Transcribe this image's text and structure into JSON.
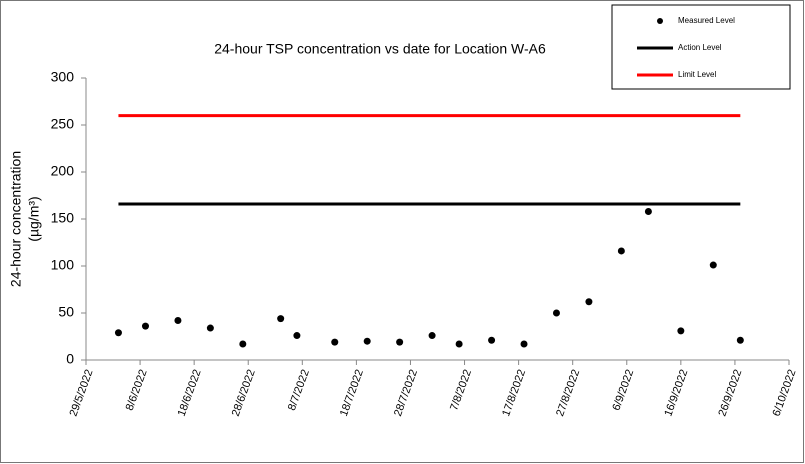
{
  "chart_data": {
    "type": "scatter",
    "title": "24-hour TSP concentration vs date for Location W-A6",
    "y_label": [
      "24-hour concentration",
      "(µg/m³)"
    ],
    "x": [
      "4/6/2022",
      "9/6/2022",
      "15/6/2022",
      "21/6/2022",
      "27/6/2022",
      "4/7/2022",
      "7/7/2022",
      "14/7/2022",
      "20/7/2022",
      "26/7/2022",
      "1/8/2022",
      "6/8/2022",
      "12/8/2022",
      "18/8/2022",
      "24/8/2022",
      "30/8/2022",
      "5/9/2022",
      "10/9/2022",
      "16/9/2022",
      "22/9/2022",
      "27/9/2022"
    ],
    "series": [
      {
        "name": "Measured Level",
        "color": "#000000",
        "marker": "circle",
        "values": [
          29,
          36,
          42,
          34,
          17,
          44,
          26,
          19,
          20,
          19,
          26,
          17,
          21,
          17,
          50,
          62,
          116,
          158,
          31,
          101,
          21
        ]
      },
      {
        "name": "Action Level",
        "color": "#000000",
        "marker": "line",
        "x": [
          "4/6/2022",
          "27/9/2022"
        ],
        "values": [
          166,
          166
        ]
      },
      {
        "name": "Limit Level",
        "color": "#ff0000",
        "marker": "line",
        "x": [
          "4/6/2022",
          "27/9/2022"
        ],
        "values": [
          260,
          260
        ]
      }
    ],
    "xlim": [
      "29/5/2022",
      "6/10/2022"
    ],
    "xticks": [
      "29/5/2022",
      "8/6/2022",
      "18/6/2022",
      "28/6/2022",
      "8/7/2022",
      "18/7/2022",
      "28/7/2022",
      "7/8/2022",
      "17/8/2022",
      "27/8/2022",
      "6/9/2022",
      "16/9/2022",
      "26/9/2022",
      "6/10/2022"
    ],
    "ylim": [
      0,
      300
    ],
    "yticks": [
      0,
      50,
      100,
      150,
      200,
      250,
      300
    ],
    "legend": "top-right"
  }
}
